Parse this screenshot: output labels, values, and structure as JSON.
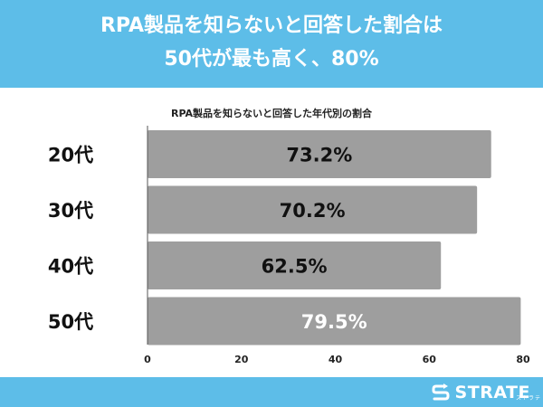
{
  "header": {
    "line1": "RPA製品を知らないと回答した割合は",
    "line2": "50代が最も高く、80%"
  },
  "footer": {
    "brand": "STRATE",
    "brand_sub": "ストラテ",
    "logo_icon": "s-arrow-logo-icon"
  },
  "colors": {
    "banner": "#5dbde8",
    "bar": "#9e9e9e",
    "bar_label": "#111111",
    "bar_label_light": "#ffffff"
  },
  "chart_data": {
    "type": "bar",
    "orientation": "horizontal",
    "title": "RPA製品を知らないと回答した年代別の割合",
    "categories": [
      "20代",
      "30代",
      "40代",
      "50代"
    ],
    "values": [
      73.2,
      70.2,
      62.5,
      79.5
    ],
    "value_labels": [
      "73.2%",
      "70.2%",
      "62.5%",
      "79.5%"
    ],
    "xlim": [
      0,
      80
    ],
    "xticks": [
      "0",
      "20",
      "40",
      "60",
      "80"
    ],
    "xlabel": "",
    "ylabel": "",
    "grid": false,
    "legend": "none"
  }
}
